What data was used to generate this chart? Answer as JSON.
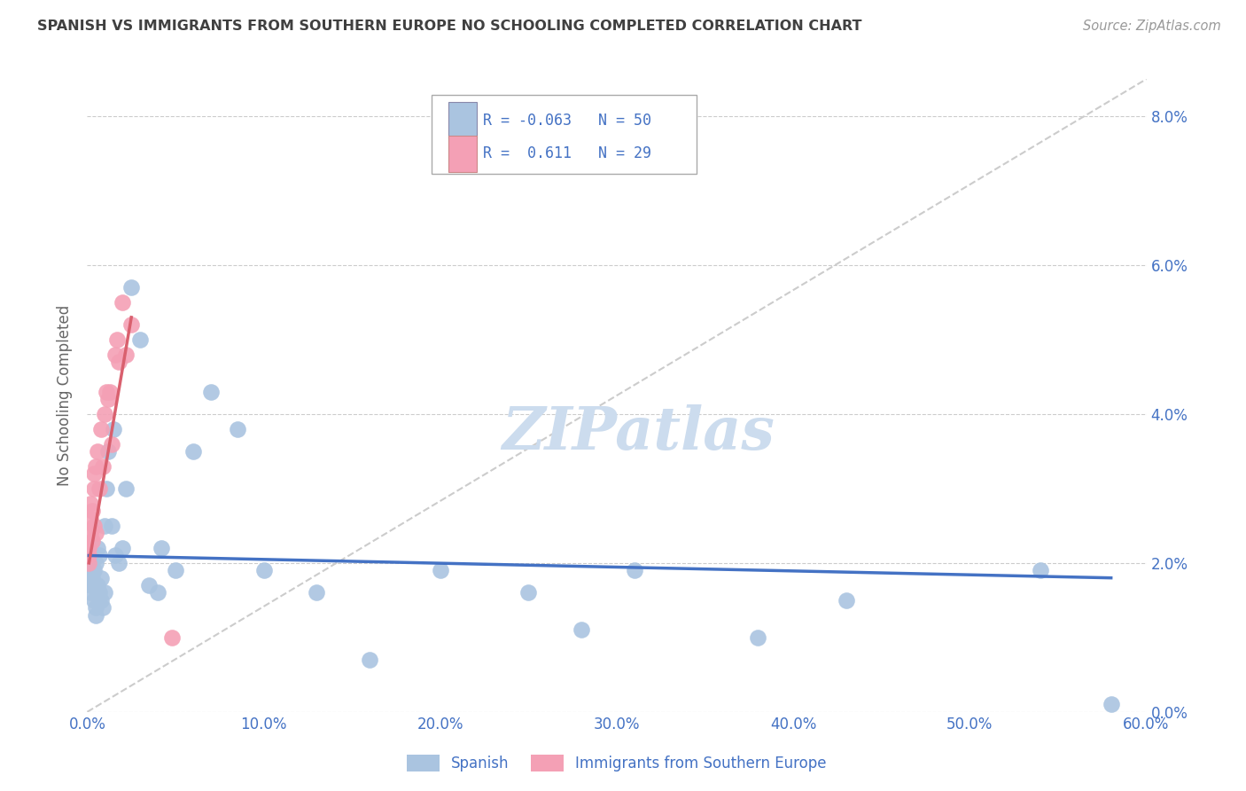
{
  "title": "SPANISH VS IMMIGRANTS FROM SOUTHERN EUROPE NO SCHOOLING COMPLETED CORRELATION CHART",
  "source": "Source: ZipAtlas.com",
  "ylabel": "No Schooling Completed",
  "legend_label1": "Spanish",
  "legend_label2": "Immigrants from Southern Europe",
  "R1": -0.063,
  "N1": 50,
  "R2": 0.611,
  "N2": 29,
  "color_blue": "#aac4e0",
  "color_pink": "#f4a0b5",
  "color_blue_line": "#4472c4",
  "color_pink_line": "#d9606e",
  "color_axis_labels": "#4472c4",
  "color_title": "#404040",
  "color_watermark": "#ccdcee",
  "xlim": [
    0.0,
    0.6
  ],
  "ylim": [
    0.0,
    0.085
  ],
  "yticks": [
    0.0,
    0.02,
    0.04,
    0.06,
    0.08
  ],
  "xticks": [
    0.0,
    0.1,
    0.2,
    0.3,
    0.4,
    0.5,
    0.6
  ],
  "blue_x": [
    0.001,
    0.001,
    0.001,
    0.002,
    0.002,
    0.002,
    0.003,
    0.003,
    0.004,
    0.004,
    0.005,
    0.005,
    0.005,
    0.006,
    0.006,
    0.007,
    0.007,
    0.008,
    0.008,
    0.009,
    0.01,
    0.01,
    0.011,
    0.012,
    0.014,
    0.015,
    0.016,
    0.018,
    0.02,
    0.022,
    0.025,
    0.03,
    0.035,
    0.04,
    0.042,
    0.05,
    0.06,
    0.07,
    0.085,
    0.1,
    0.13,
    0.16,
    0.2,
    0.25,
    0.28,
    0.31,
    0.38,
    0.43,
    0.54,
    0.58
  ],
  "blue_y": [
    0.02,
    0.019,
    0.018,
    0.021,
    0.017,
    0.016,
    0.018,
    0.02,
    0.019,
    0.015,
    0.02,
    0.014,
    0.013,
    0.022,
    0.017,
    0.016,
    0.021,
    0.018,
    0.015,
    0.014,
    0.025,
    0.016,
    0.03,
    0.035,
    0.025,
    0.038,
    0.021,
    0.02,
    0.022,
    0.03,
    0.057,
    0.05,
    0.017,
    0.016,
    0.022,
    0.019,
    0.035,
    0.043,
    0.038,
    0.019,
    0.016,
    0.007,
    0.019,
    0.016,
    0.011,
    0.019,
    0.01,
    0.015,
    0.019,
    0.001
  ],
  "pink_x": [
    0.001,
    0.001,
    0.001,
    0.002,
    0.002,
    0.002,
    0.003,
    0.003,
    0.004,
    0.004,
    0.004,
    0.005,
    0.005,
    0.006,
    0.007,
    0.008,
    0.009,
    0.01,
    0.011,
    0.012,
    0.013,
    0.014,
    0.016,
    0.017,
    0.018,
    0.02,
    0.022,
    0.025,
    0.048
  ],
  "pink_y": [
    0.021,
    0.02,
    0.022,
    0.024,
    0.026,
    0.028,
    0.023,
    0.027,
    0.03,
    0.025,
    0.032,
    0.024,
    0.033,
    0.035,
    0.03,
    0.038,
    0.033,
    0.04,
    0.043,
    0.042,
    0.043,
    0.036,
    0.048,
    0.05,
    0.047,
    0.055,
    0.048,
    0.052,
    0.01
  ],
  "blue_line_x": [
    0.001,
    0.58
  ],
  "blue_line_y": [
    0.021,
    0.018
  ],
  "pink_line_x": [
    0.001,
    0.025
  ],
  "pink_line_y": [
    0.02,
    0.053
  ],
  "ref_line_x": [
    0.0,
    0.6
  ],
  "ref_line_y": [
    0.0,
    0.085
  ]
}
